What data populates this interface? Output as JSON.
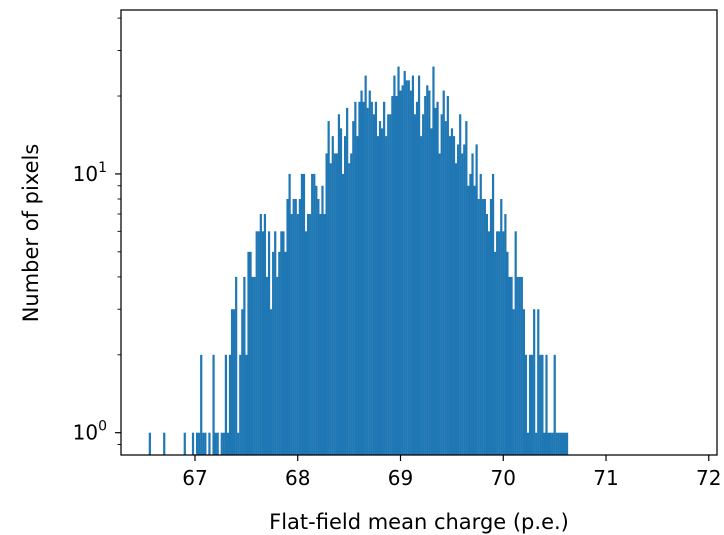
{
  "chart_data": {
    "type": "bar",
    "xlabel": "Flat-field mean charge (p.e.)",
    "ylabel": "Number of pixels",
    "bar_color": "#1f77b4",
    "xlim": [
      66.28,
      72.08
    ],
    "ylim": [
      0.82,
      43
    ],
    "y_scale": "log",
    "grid": false,
    "x_ticks": [
      {
        "value": 67,
        "label": "67"
      },
      {
        "value": 68,
        "label": "68"
      },
      {
        "value": 69,
        "label": "69"
      },
      {
        "value": 70,
        "label": "70"
      },
      {
        "value": 71,
        "label": "71"
      },
      {
        "value": 72,
        "label": "72"
      }
    ],
    "y_ticks": [
      {
        "value": 1,
        "base": "10",
        "exp": "0"
      },
      {
        "value": 10,
        "base": "10",
        "exp": "1"
      }
    ],
    "bins": {
      "x_start": 66.55,
      "bin_width": 0.02,
      "counts": [
        1,
        0,
        0,
        0,
        0,
        0,
        0,
        1,
        0,
        0,
        0,
        0,
        0,
        0,
        0,
        0,
        0,
        1,
        0,
        0,
        0,
        1,
        0,
        1,
        1,
        2,
        1,
        1,
        0,
        1,
        0,
        2,
        1,
        1,
        0,
        1,
        1,
        2,
        1,
        2,
        3,
        3,
        4,
        1,
        2,
        3,
        4,
        2,
        5,
        5,
        4,
        4,
        6,
        6,
        7,
        6,
        7,
        4,
        6,
        3,
        5,
        6,
        4,
        5,
        6,
        6,
        5,
        8,
        10,
        7,
        8,
        8,
        7,
        8,
        10,
        10,
        6,
        7,
        7,
        10,
        10,
        9,
        8,
        7,
        9,
        7,
        12,
        16,
        11,
        14,
        12,
        12,
        17,
        15,
        10,
        14,
        18,
        11,
        12,
        16,
        19,
        14,
        19,
        21,
        19,
        24,
        18,
        21,
        19,
        17,
        19,
        14,
        16,
        15,
        19,
        14,
        17,
        17,
        20,
        24,
        20,
        26,
        21,
        22,
        25,
        23,
        23,
        21,
        24,
        17,
        19,
        24,
        14,
        17,
        20,
        22,
        21,
        15,
        26,
        18,
        19,
        12,
        17,
        21,
        16,
        20,
        14,
        15,
        14,
        11,
        13,
        17,
        12,
        13,
        16,
        9,
        10,
        12,
        9,
        13,
        8,
        10,
        8,
        8,
        7,
        6,
        8,
        10,
        5,
        6,
        6,
        8,
        6,
        7,
        5,
        4,
        4,
        3,
        6,
        4,
        4,
        4,
        3,
        2,
        1,
        2,
        2,
        3,
        1,
        3,
        2,
        2,
        1,
        2,
        1,
        1,
        1,
        2,
        1,
        1,
        1,
        1,
        1,
        1
      ]
    }
  }
}
